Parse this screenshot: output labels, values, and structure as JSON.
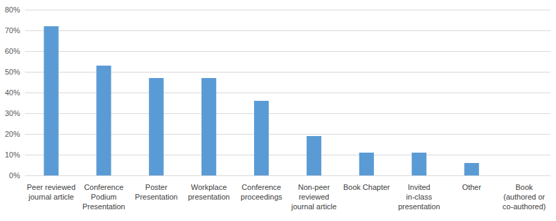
{
  "chart_data": {
    "type": "bar",
    "categories": [
      "Peer reviewed journal article",
      "Conference Podium Presentation",
      "Poster Presentation",
      "Workplace presentation",
      "Conference proceedings",
      "Non-peer reviewed journal article",
      "Book Chapter",
      "Invited in-class presentation",
      "Other",
      "Book (authored or co-authored)"
    ],
    "values": [
      72,
      53,
      47,
      47,
      36,
      19,
      11,
      11,
      6,
      0
    ],
    "color": "#5b9bd5",
    "ylim": [
      0,
      80
    ],
    "yticks": [
      {
        "value": 0,
        "label": "0%"
      },
      {
        "value": 10,
        "label": "10%"
      },
      {
        "value": 20,
        "label": "20%"
      },
      {
        "value": 30,
        "label": "30%"
      },
      {
        "value": 40,
        "label": "40%"
      },
      {
        "value": 50,
        "label": "50%"
      },
      {
        "value": 60,
        "label": "60%"
      },
      {
        "value": 70,
        "label": "70%"
      },
      {
        "value": 80,
        "label": "80%"
      }
    ],
    "grid": true
  }
}
